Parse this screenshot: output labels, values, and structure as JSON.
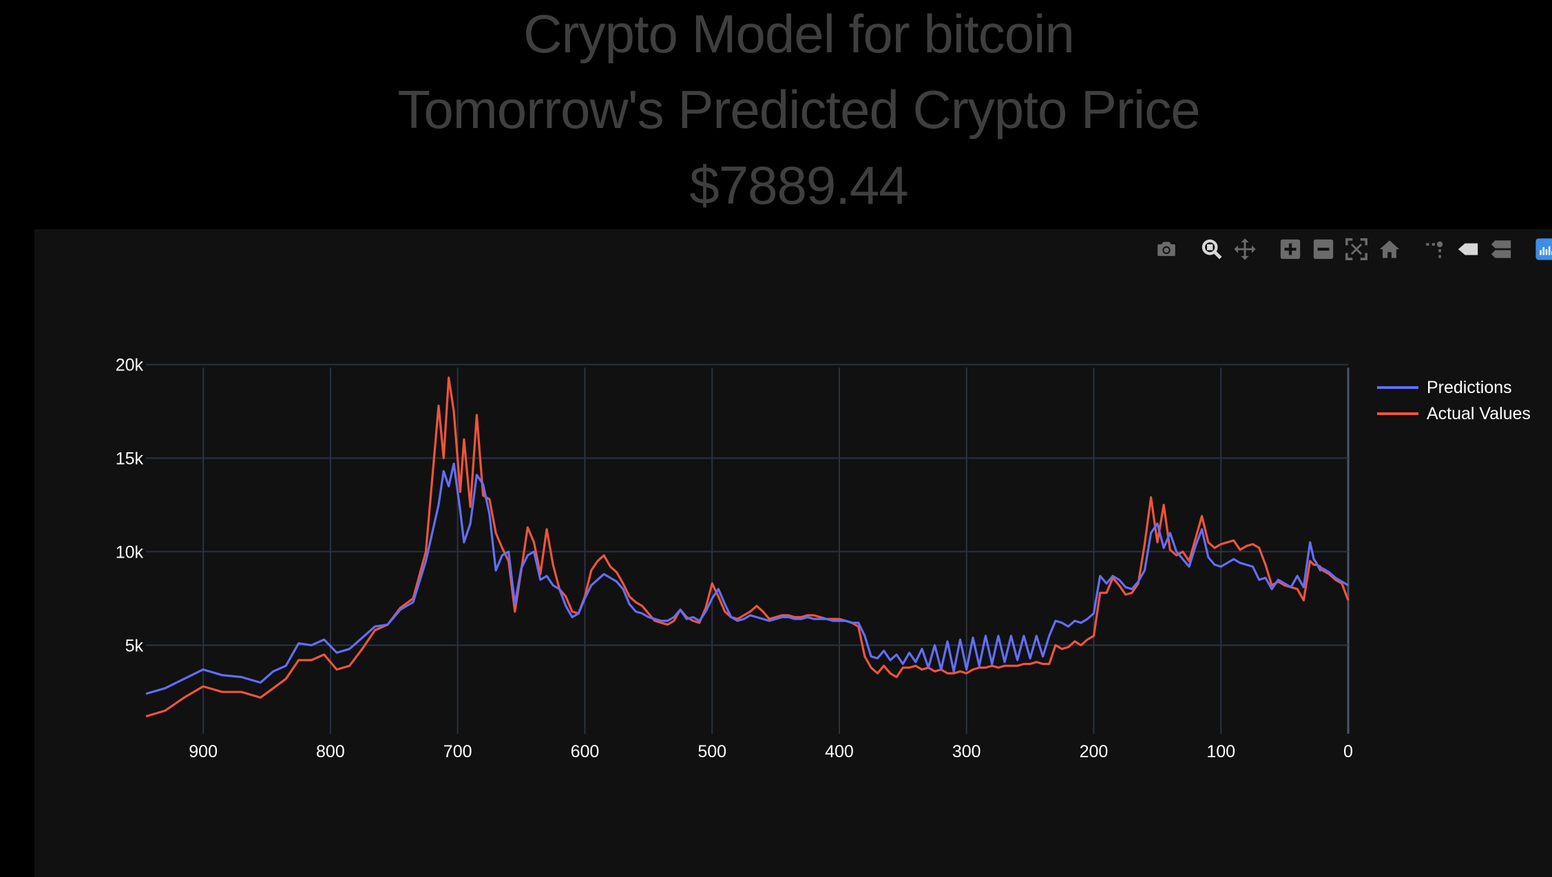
{
  "header": {
    "title": "Crypto Model for bitcoin",
    "subtitle": "Tomorrow's Predicted Crypto Price",
    "price": "$7889.44"
  },
  "modebar": {
    "icons": [
      "camera-icon",
      "zoom-icon",
      "pan-icon",
      "zoom-in-icon",
      "zoom-out-icon",
      "autoscale-icon",
      "reset-axes-icon",
      "spike-lines-icon",
      "hover-closest-icon",
      "hover-compare-icon",
      "plotly-logo-icon"
    ]
  },
  "chart_data": {
    "type": "line",
    "xlim": [
      945,
      0
    ],
    "ylim": [
      1000,
      20500
    ],
    "x_ticks": [
      900,
      800,
      700,
      600,
      500,
      400,
      300,
      200,
      100,
      0
    ],
    "x_tick_labels": [
      "900",
      "800",
      "700",
      "600",
      "500",
      "400",
      "300",
      "200",
      "100",
      "0"
    ],
    "y_ticks": [
      5000,
      10000,
      15000,
      20000
    ],
    "y_tick_labels": [
      "5k",
      "10k",
      "15k",
      "20k"
    ],
    "grid": true,
    "legend_position": "top-right",
    "series": [
      {
        "name": "Predictions",
        "color": "#636efa",
        "x": [
          945,
          930,
          915,
          900,
          885,
          870,
          855,
          845,
          835,
          825,
          815,
          805,
          795,
          785,
          775,
          765,
          755,
          745,
          735,
          725,
          715,
          711,
          707,
          703,
          698,
          695,
          690,
          685,
          680,
          675,
          670,
          665,
          660,
          655,
          650,
          645,
          640,
          635,
          630,
          625,
          620,
          615,
          610,
          605,
          600,
          595,
          590,
          585,
          580,
          575,
          570,
          565,
          560,
          555,
          550,
          545,
          540,
          535,
          530,
          525,
          520,
          515,
          510,
          505,
          500,
          495,
          490,
          485,
          480,
          475,
          470,
          465,
          460,
          455,
          450,
          445,
          440,
          435,
          430,
          425,
          420,
          415,
          410,
          405,
          400,
          395,
          390,
          385,
          380,
          375,
          370,
          365,
          360,
          355,
          350,
          345,
          340,
          335,
          330,
          325,
          320,
          315,
          310,
          305,
          300,
          295,
          290,
          285,
          280,
          275,
          270,
          265,
          260,
          255,
          250,
          245,
          240,
          235,
          230,
          225,
          220,
          215,
          210,
          205,
          200,
          195,
          190,
          185,
          180,
          175,
          170,
          165,
          160,
          155,
          150,
          145,
          140,
          135,
          130,
          125,
          120,
          115,
          110,
          105,
          100,
          95,
          90,
          85,
          80,
          75,
          70,
          65,
          60,
          55,
          50,
          45,
          40,
          35,
          30,
          27,
          25,
          22,
          20,
          15,
          10,
          5,
          0
        ],
        "y": [
          2400,
          2700,
          3200,
          3700,
          3400,
          3300,
          3000,
          3600,
          3900,
          5100,
          5000,
          5300,
          4600,
          4800,
          5400,
          6000,
          6100,
          6900,
          7300,
          9500,
          12500,
          14300,
          13500,
          14700,
          12200,
          10500,
          11500,
          14100,
          13600,
          12000,
          9000,
          9800,
          10000,
          7200,
          9100,
          9800,
          10000,
          8500,
          8700,
          8200,
          8000,
          7100,
          6500,
          6700,
          7500,
          8200,
          8500,
          8800,
          8600,
          8400,
          8000,
          7200,
          6800,
          6700,
          6500,
          6400,
          6300,
          6300,
          6500,
          6900,
          6400,
          6500,
          6300,
          6800,
          7500,
          8000,
          7200,
          6500,
          6300,
          6400,
          6600,
          6500,
          6400,
          6300,
          6400,
          6500,
          6500,
          6400,
          6400,
          6500,
          6400,
          6400,
          6400,
          6300,
          6300,
          6300,
          6200,
          6200,
          5500,
          4400,
          4300,
          4700,
          4200,
          4500,
          4000,
          4600,
          4100,
          4800,
          3800,
          5000,
          3700,
          5200,
          3600,
          5300,
          3700,
          5400,
          3900,
          5500,
          4000,
          5500,
          4100,
          5500,
          4200,
          5500,
          4300,
          5500,
          4400,
          5500,
          6300,
          6200,
          6000,
          6300,
          6200,
          6400,
          6700,
          8700,
          8300,
          8700,
          8500,
          8100,
          8000,
          8400,
          9000,
          11000,
          11500,
          10200,
          11000,
          10000,
          9600,
          9200,
          10300,
          11200,
          9700,
          9300,
          9200,
          9400,
          9600,
          9400,
          9300,
          9200,
          8500,
          8600,
          8000,
          8500,
          8300,
          8100,
          8700,
          8100,
          10500,
          9600,
          9400,
          9000,
          9100,
          8900,
          8600,
          8400,
          8200
        ]
      },
      {
        "name": "Actual Values",
        "color": "#ef553b",
        "x": [
          945,
          930,
          915,
          900,
          885,
          870,
          855,
          845,
          835,
          825,
          815,
          805,
          795,
          785,
          775,
          765,
          755,
          745,
          735,
          725,
          715,
          711,
          707,
          703,
          698,
          695,
          690,
          685,
          680,
          675,
          670,
          665,
          660,
          655,
          650,
          645,
          640,
          635,
          630,
          625,
          620,
          615,
          610,
          605,
          600,
          595,
          590,
          585,
          580,
          575,
          570,
          565,
          560,
          555,
          550,
          545,
          540,
          535,
          530,
          525,
          520,
          515,
          510,
          505,
          500,
          495,
          490,
          485,
          480,
          475,
          470,
          465,
          460,
          455,
          450,
          445,
          440,
          435,
          430,
          425,
          420,
          415,
          410,
          405,
          400,
          395,
          390,
          385,
          380,
          375,
          370,
          365,
          360,
          355,
          350,
          345,
          340,
          335,
          330,
          325,
          320,
          315,
          310,
          305,
          300,
          295,
          290,
          285,
          280,
          275,
          270,
          265,
          260,
          255,
          250,
          245,
          240,
          235,
          230,
          225,
          220,
          215,
          210,
          205,
          200,
          195,
          190,
          185,
          180,
          175,
          170,
          165,
          160,
          155,
          150,
          145,
          140,
          135,
          130,
          125,
          120,
          115,
          110,
          105,
          100,
          95,
          90,
          85,
          80,
          75,
          70,
          65,
          60,
          55,
          50,
          45,
          40,
          35,
          30,
          27,
          25,
          22,
          20,
          15,
          10,
          5,
          0
        ],
        "y": [
          1200,
          1500,
          2200,
          2800,
          2500,
          2500,
          2200,
          2700,
          3200,
          4200,
          4200,
          4500,
          3700,
          3900,
          4800,
          5800,
          6100,
          7000,
          7500,
          10000,
          17800,
          15000,
          19300,
          17500,
          13200,
          16000,
          12400,
          17300,
          13000,
          12800,
          11000,
          10200,
          9500,
          6800,
          9000,
          11300,
          10500,
          8800,
          11200,
          9300,
          8000,
          7600,
          6800,
          6700,
          7600,
          9000,
          9500,
          9800,
          9200,
          8900,
          8300,
          7600,
          7300,
          7100,
          6700,
          6300,
          6200,
          6100,
          6300,
          6900,
          6500,
          6300,
          6200,
          7000,
          8300,
          7600,
          6800,
          6500,
          6400,
          6600,
          6800,
          7100,
          6800,
          6400,
          6500,
          6600,
          6600,
          6500,
          6500,
          6600,
          6600,
          6500,
          6400,
          6400,
          6400,
          6300,
          6200,
          6000,
          4400,
          3800,
          3500,
          3900,
          3500,
          3300,
          3800,
          3800,
          3900,
          3700,
          3800,
          3600,
          3700,
          3500,
          3500,
          3600,
          3500,
          3700,
          3800,
          3800,
          3900,
          3800,
          3900,
          3900,
          3900,
          4000,
          4000,
          4100,
          4000,
          4000,
          5000,
          4800,
          4900,
          5200,
          5000,
          5300,
          5500,
          7800,
          7800,
          8600,
          8200,
          7700,
          7800,
          8300,
          10400,
          12900,
          10500,
          12500,
          10100,
          9800,
          10000,
          9500,
          10700,
          11900,
          10500,
          10200,
          10400,
          10500,
          10600,
          10100,
          10300,
          10400,
          10200,
          9300,
          8200,
          8400,
          8200,
          8100,
          8000,
          7400,
          9500,
          9300,
          9300,
          9200,
          9000,
          8800,
          8500,
          8300,
          7400
        ]
      }
    ]
  }
}
